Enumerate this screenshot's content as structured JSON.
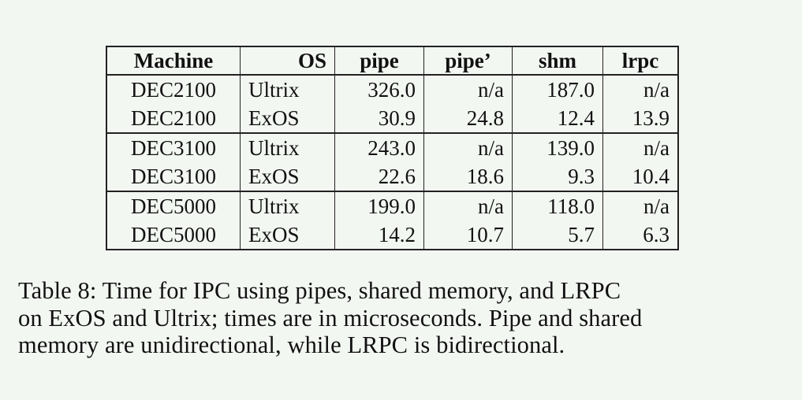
{
  "table": {
    "headers": [
      "Machine",
      "OS",
      "pipe",
      "pipe’",
      "shm",
      "lrpc"
    ],
    "groups": [
      {
        "rows": [
          [
            "DEC2100",
            "Ultrix",
            "326.0",
            "n/a",
            "187.0",
            "n/a"
          ],
          [
            "DEC2100",
            "ExOS",
            "30.9",
            "24.8",
            "12.4",
            "13.9"
          ]
        ]
      },
      {
        "rows": [
          [
            "DEC3100",
            "Ultrix",
            "243.0",
            "n/a",
            "139.0",
            "n/a"
          ],
          [
            "DEC3100",
            "ExOS",
            "22.6",
            "18.6",
            "9.3",
            "10.4"
          ]
        ]
      },
      {
        "rows": [
          [
            "DEC5000",
            "Ultrix",
            "199.0",
            "n/a",
            "118.0",
            "n/a"
          ],
          [
            "DEC5000",
            "ExOS",
            "14.2",
            "10.7",
            "5.7",
            "6.3"
          ]
        ]
      }
    ]
  },
  "caption": {
    "lines": [
      "Table 8:  Time for IPC using pipes, shared memory, and LRPC",
      "on ExOS and Ultrix; times are in microseconds.  Pipe and shared",
      "memory are unidirectional, while LRPC is bidirectional."
    ]
  }
}
